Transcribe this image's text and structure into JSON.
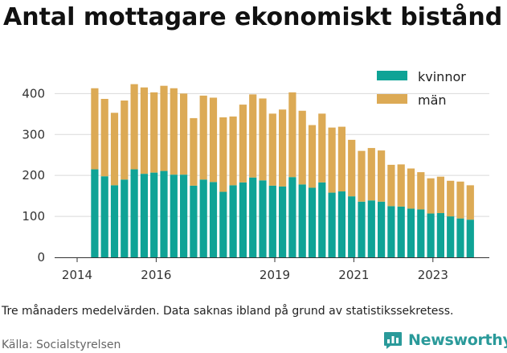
{
  "title": "Antal mottagare ekonomiskt bistånd",
  "note": "Tre månaders medelvärden. Data saknas ibland på grund av statistikssekretess.",
  "source": "Källa: Socialstyrelsen",
  "brand": {
    "name": "Newsworthy",
    "icon": "newsworthy-logo-icon",
    "color": "#2a9a9a"
  },
  "chart_data": {
    "type": "bar",
    "stacked": true,
    "x_tick_labels": [
      "2014",
      "2016",
      "2019",
      "2021",
      "2023"
    ],
    "y_tick_labels": [
      "0",
      "100",
      "200",
      "300",
      "400"
    ],
    "ylim": [
      0,
      440
    ],
    "grid": true,
    "legend_position": "top-right",
    "series": [
      {
        "name": "kvinnor",
        "color": "#0fa396",
        "values": [
          215,
          198,
          176,
          190,
          215,
          204,
          207,
          211,
          202,
          202,
          175,
          190,
          184,
          160,
          176,
          183,
          195,
          188,
          175,
          173,
          196,
          178,
          170,
          183,
          158,
          161,
          149,
          136,
          139,
          136,
          125,
          124,
          119,
          117,
          107,
          108,
          100,
          95,
          92
        ]
      },
      {
        "name": "män",
        "color": "#dcaa55",
        "values": [
          198,
          189,
          177,
          193,
          208,
          211,
          196,
          208,
          211,
          198,
          165,
          205,
          206,
          182,
          168,
          190,
          203,
          200,
          176,
          188,
          207,
          180,
          153,
          168,
          159,
          158,
          138,
          124,
          128,
          125,
          101,
          103,
          98,
          91,
          86,
          89,
          87,
          90,
          84
        ]
      }
    ]
  }
}
